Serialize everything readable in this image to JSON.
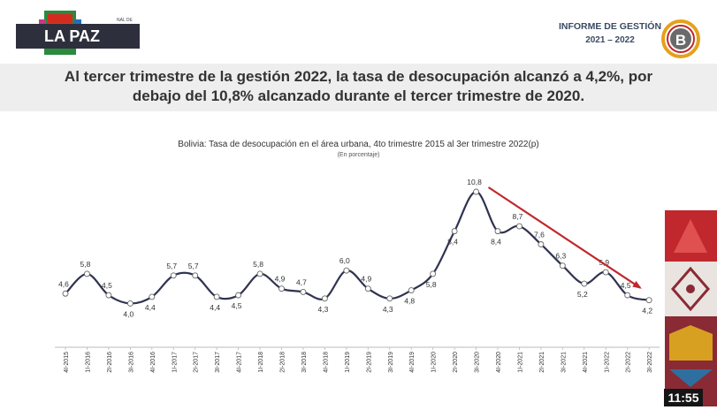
{
  "header": {
    "region_label": "LA PAZ",
    "logo_text": "IA",
    "logo_small": "NAL DE",
    "report_title": "INFORME DE GESTIÓN",
    "report_years": "2021 – 2022"
  },
  "headline": {
    "line1": "Al tercer trimestre de la gestión 2022, la tasa de desocupación alcanzó a 4,2%, por",
    "line2": "debajo del 10,8% alcanzado durante el tercer trimestre de 2020."
  },
  "timer": "11:55",
  "chart_data": {
    "type": "line",
    "title": "Bolivia: Tasa de desocupación en el área urbana, 4to trimestre 2015 al 3er trimestre 2022(p)",
    "subtitle": "(En porcentaje)",
    "categories": [
      "4I-2015",
      "1I-2016",
      "2I-2016",
      "3I-2016",
      "4I-2016",
      "1I-2017",
      "2I-2017",
      "3I-2017",
      "4I-2017",
      "1I-2018",
      "2I-2018",
      "3I-2018",
      "4I-2018",
      "1I-2019",
      "2I-2019",
      "3I-2019",
      "4I-2019",
      "1I-2020",
      "2I-2020",
      "3I-2020",
      "4I-2020",
      "1I-2021",
      "2I-2021",
      "3I-2021",
      "4I-2021",
      "1I-2022",
      "2I-2022",
      "3I-2022"
    ],
    "values": [
      4.6,
      5.8,
      4.5,
      4.0,
      4.4,
      5.7,
      5.7,
      4.4,
      4.5,
      5.8,
      4.9,
      4.7,
      4.3,
      6.0,
      4.9,
      4.3,
      4.8,
      5.8,
      8.4,
      10.8,
      8.4,
      8.7,
      7.6,
      6.3,
      5.2,
      5.9,
      4.5,
      4.2
    ],
    "value_labels": [
      "4,6",
      "5,8",
      "4,5",
      "4,0",
      "4,4",
      "5,7",
      "5,7",
      "4,4",
      "4,5",
      "5,8",
      "4,9",
      "4,7",
      "4,3",
      "6,0",
      "4,9",
      "4,3",
      "4,8",
      "5,8",
      "8,4",
      "10,8",
      "8,4",
      "8,7",
      "7,6",
      "6,3",
      "5,2",
      "5,9",
      "4,5",
      "4,2"
    ],
    "ylim": [
      3.0,
      11.5
    ],
    "grid": false,
    "colors": {
      "line": "#2f3350",
      "arrow": "#c0282d"
    },
    "annotations": [
      {
        "type": "trend-arrow",
        "from": "3I-2020",
        "to": "3I-2022"
      }
    ]
  }
}
